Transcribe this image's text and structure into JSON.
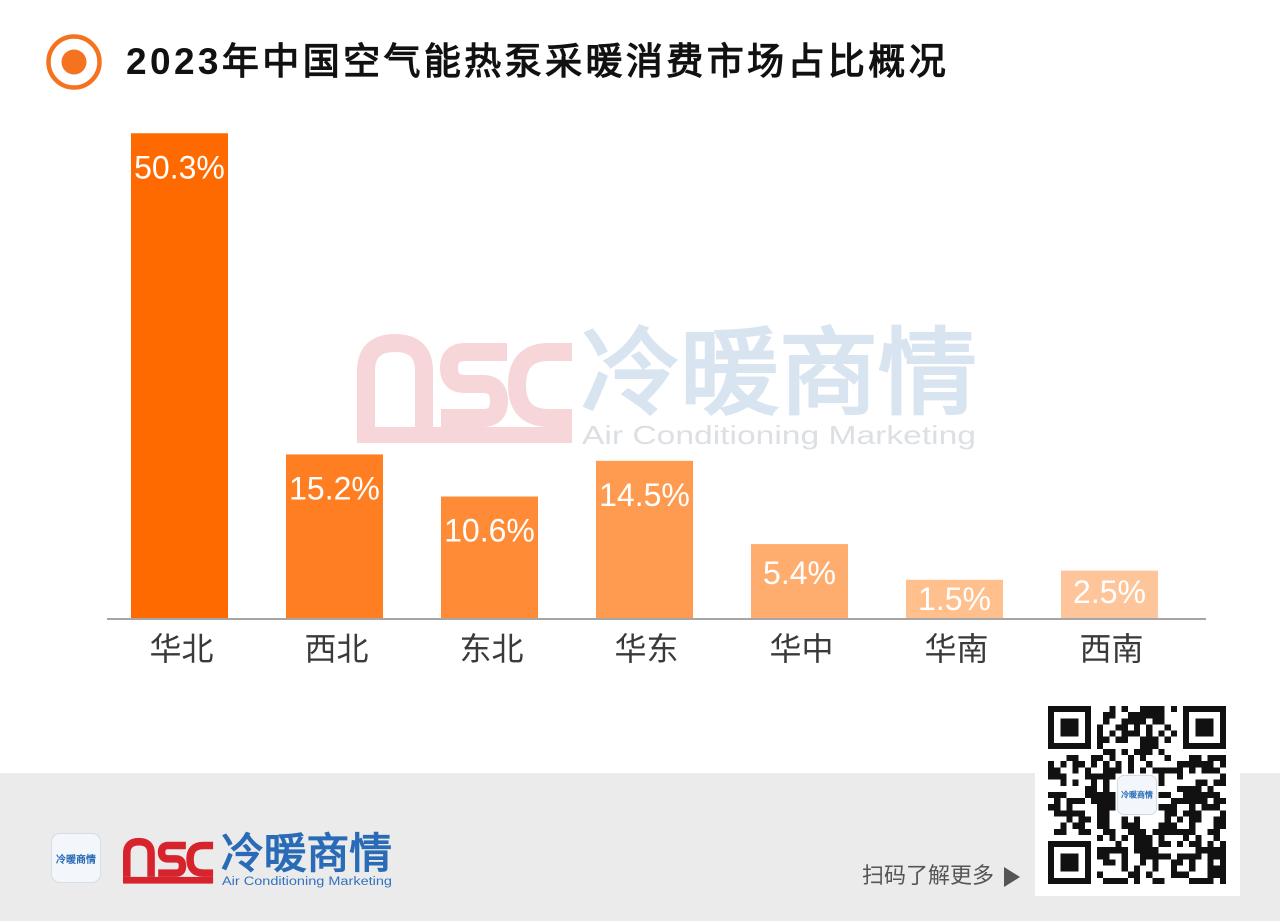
{
  "chart_data": {
    "type": "bar",
    "title": "2023年中国空气能热泵采暖消费市场占比概况",
    "categories": [
      "华北",
      "西北",
      "东北",
      "华东",
      "华中",
      "华南",
      "西南"
    ],
    "values": [
      50.3,
      15.2,
      10.6,
      14.5,
      5.4,
      1.5,
      2.5
    ],
    "data_labels": [
      "50.3%",
      "15.2%",
      "10.6%",
      "14.5%",
      "5.4%",
      "1.5%",
      "2.5%"
    ],
    "colors": [
      "#FF6A00",
      "#FF7E22",
      "#FF8B36",
      "#FF9B50",
      "#FFAD6F",
      "#FFC08D",
      "#FFC59A"
    ],
    "grid": false,
    "legend": "none"
  },
  "colors": {
    "accent": "#F5731F",
    "brand_red": "#D7242C",
    "brand_blue": "#2A6BB7",
    "footer_background": "#EBEBEB"
  },
  "icons": {
    "title_bullet": "target-icon",
    "qr_arrow": "play-arrow-icon"
  },
  "watermark": {
    "brand_mark": "nsc",
    "name": "冷暖商情",
    "tagline": "Air Conditioning Marketing"
  },
  "footer": {
    "app_icon_text": "冷暖商情",
    "brand_mark": "nsc",
    "brand_name": "冷暖商情",
    "brand_tagline": "Air Conditioning Marketing",
    "qr_prompt": "扫码了解更多"
  }
}
